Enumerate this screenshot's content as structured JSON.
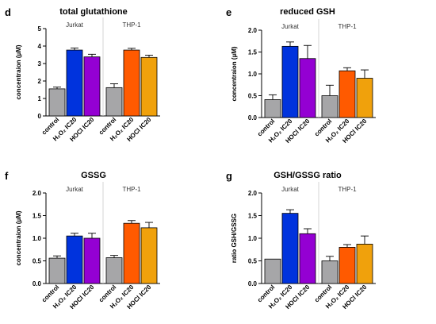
{
  "colors": {
    "control": "#a6a6a8",
    "jurkat_h2o2": "#0033dd",
    "jurkat_hocl": "#9400d3",
    "thp1_h2o2": "#ff5a00",
    "thp1_hocl": "#f0a10c",
    "axis": "#000000",
    "divider": "#cccccc"
  },
  "chart_data": [
    {
      "letter": "d",
      "type": "bar",
      "title": "total glutathione",
      "ylabel": "concentraion (µM)",
      "ylim": [
        0,
        5
      ],
      "yticks": [
        0,
        1,
        2,
        3,
        4,
        5
      ],
      "ytick_labels": [
        "0",
        "1",
        "2",
        "3",
        "4",
        "5"
      ],
      "groups": [
        "Jurkat",
        "THP-1"
      ],
      "categories": [
        "control",
        "H₂O₂ IC20",
        "HOCl IC20",
        "control",
        "H₂O₂ IC20",
        "HOCl IC20"
      ],
      "values": [
        1.55,
        3.77,
        3.38,
        1.62,
        3.77,
        3.35
      ],
      "errors": [
        0.1,
        0.12,
        0.15,
        0.22,
        0.1,
        0.13
      ]
    },
    {
      "letter": "e",
      "type": "bar",
      "title": "reduced GSH",
      "ylabel": "concentraion (µM)",
      "ylim": [
        0,
        2
      ],
      "yticks": [
        0,
        0.5,
        1,
        1.5,
        2
      ],
      "ytick_labels": [
        "0.0",
        "0.5",
        "1.0",
        "1.5",
        "2.0"
      ],
      "groups": [
        "Jurkat",
        "THP-1"
      ],
      "categories": [
        "control",
        "H₂O₂ IC20",
        "HOCl IC20",
        "control",
        "H₂O₂ IC20",
        "HOCl IC20"
      ],
      "values": [
        0.41,
        1.63,
        1.35,
        0.5,
        1.07,
        0.9
      ],
      "errors": [
        0.11,
        0.1,
        0.3,
        0.24,
        0.07,
        0.19
      ]
    },
    {
      "letter": "f",
      "type": "bar",
      "title": "GSSG",
      "ylabel": "concentraion (µM)",
      "ylim": [
        0,
        2
      ],
      "yticks": [
        0,
        0.5,
        1,
        1.5,
        2
      ],
      "ytick_labels": [
        "0.0",
        "0.5",
        "1.0",
        "1.5",
        "2.0"
      ],
      "groups": [
        "Jurkat",
        "THP-1"
      ],
      "categories": [
        "control",
        "H₂O₂ IC20",
        "HOCl IC20",
        "control",
        "H₂O₂ IC20",
        "HOCl IC20"
      ],
      "values": [
        0.56,
        1.05,
        1.0,
        0.57,
        1.33,
        1.23
      ],
      "errors": [
        0.05,
        0.06,
        0.11,
        0.05,
        0.06,
        0.12
      ]
    },
    {
      "letter": "g",
      "type": "bar",
      "title": "GSH/GSSG ratio",
      "ylabel": "ratio GSH/GSSG",
      "ylim": [
        0,
        2
      ],
      "yticks": [
        0,
        0.5,
        1,
        1.5,
        2
      ],
      "ytick_labels": [
        "0.0",
        "0.5",
        "1.0",
        "1.5",
        "2.0"
      ],
      "groups": [
        "Jurkat",
        "THP-1"
      ],
      "categories": [
        "control",
        "H₂O₂ IC20",
        "HOCl IC20",
        "control",
        "H₂O₂ IC20",
        "HOCl IC20"
      ],
      "values": [
        0.54,
        1.55,
        1.1,
        0.5,
        0.8,
        0.87
      ],
      "errors": [
        0.0,
        0.08,
        0.11,
        0.1,
        0.06,
        0.18
      ]
    }
  ]
}
